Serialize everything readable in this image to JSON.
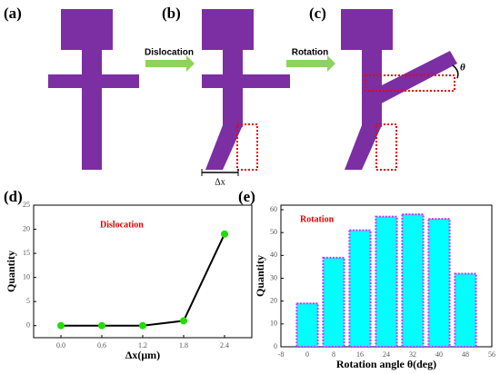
{
  "diagram": {
    "panels": [
      "(a)",
      "(b)",
      "(c)"
    ],
    "arrows": [
      "Dislocation",
      "Rotation"
    ],
    "dx": "Δx",
    "theta": "θ"
  },
  "chart_data": [
    {
      "type": "line",
      "panel": "(d)",
      "annotation": "Dislocation",
      "annotation_color": "#e00000",
      "x": [
        0,
        0.6,
        1.2,
        1.8,
        2.4
      ],
      "values": [
        0,
        0,
        0,
        1,
        19
      ],
      "color": "#000000",
      "marker_color": "#22dd00",
      "xlim": [
        -0.4,
        2.8
      ],
      "xticks": [
        {
          "value": 0,
          "label": "0.0"
        },
        {
          "value": 0.6,
          "label": "0.6"
        },
        {
          "value": 1.2,
          "label": "1.2"
        },
        {
          "value": 1.8,
          "label": "1.8"
        },
        {
          "value": 2.4,
          "label": "2.4"
        }
      ],
      "ylim": [
        -2.5,
        25
      ],
      "yticks": [
        0,
        5,
        10,
        15,
        20,
        25
      ],
      "xlabel": "Δx(μm)",
      "ylabel": "Quantity"
    },
    {
      "type": "bar",
      "panel": "(e)",
      "annotation": "Rotation",
      "annotation_color": "#e00000",
      "x": [
        0,
        8,
        16,
        24,
        32,
        40,
        48
      ],
      "values": [
        19,
        39,
        51,
        57,
        58,
        56,
        32
      ],
      "color": "#00ffff",
      "edge_color": "#cc33ff",
      "xlim": [
        -8,
        56
      ],
      "xticks": [
        -8,
        0,
        8,
        16,
        24,
        32,
        40,
        48,
        56
      ],
      "ylim": [
        0,
        62
      ],
      "yticks": [
        0,
        10,
        20,
        30,
        40,
        50,
        60
      ],
      "xlabel": "Rotation angle θ(deg)",
      "ylabel": "Quantity"
    }
  ]
}
